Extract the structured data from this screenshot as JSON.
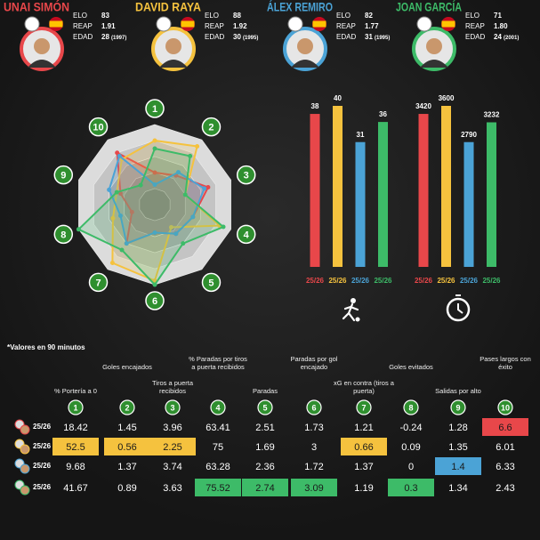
{
  "players": [
    {
      "name": "UNAI SIMÓN",
      "color": "#e8474a",
      "elo": 83,
      "reap": "1.91",
      "age": 28,
      "born": "(1997)"
    },
    {
      "name": "DAVID RAYA",
      "color": "#f5c23e",
      "elo": 88,
      "reap": "1.92",
      "age": 30,
      "born": "(1995)"
    },
    {
      "name": "ÁLEX REMIRO",
      "color": "#4ba3d6",
      "elo": 82,
      "reap": "1.77",
      "age": 31,
      "born": "(1995)"
    },
    {
      "name": "JOAN GARCÍA",
      "color": "#3dbb68",
      "elo": 71,
      "reap": "1.80",
      "age": 24,
      "born": "(2001)"
    }
  ],
  "stat_labels": [
    "ELO",
    "REAP",
    "EDAD"
  ],
  "chart_data": [
    {
      "type": "radar",
      "categories": [
        1,
        2,
        3,
        4,
        5,
        6,
        7,
        8,
        9,
        10
      ],
      "rlim": [
        0,
        100
      ],
      "series": [
        {
          "color": "#e8474a",
          "values": [
            40,
            45,
            70,
            50,
            45,
            35,
            60,
            30,
            45,
            80
          ]
        },
        {
          "color": "#f5c23e",
          "values": [
            80,
            90,
            40,
            85,
            35,
            95,
            90,
            55,
            50,
            70
          ]
        },
        {
          "color": "#4ba3d6",
          "values": [
            25,
            50,
            65,
            50,
            45,
            35,
            60,
            45,
            60,
            75
          ]
        },
        {
          "color": "#3dbb68",
          "values": [
            70,
            75,
            40,
            90,
            60,
            100,
            70,
            100,
            50,
            30
          ]
        }
      ]
    },
    {
      "type": "bar",
      "categories": [
        "25/26",
        "25/26",
        "25/26",
        "25/26"
      ],
      "values": [
        38,
        40,
        31,
        36
      ],
      "colors": [
        "#e8474a",
        "#f5c23e",
        "#4ba3d6",
        "#3dbb68"
      ],
      "ylim": [
        0,
        40
      ]
    },
    {
      "type": "bar",
      "categories": [
        "25/26",
        "25/26",
        "25/26",
        "25/26"
      ],
      "values": [
        3420,
        3600,
        2790,
        3232
      ],
      "colors": [
        "#e8474a",
        "#f5c23e",
        "#4ba3d6",
        "#3dbb68"
      ],
      "ylim": [
        0,
        3600
      ]
    }
  ],
  "table": {
    "note": "*Valores en 90 minutos",
    "columns": [
      {
        "num": 1,
        "label": "% Portería a 0"
      },
      {
        "num": 2,
        "label": "Goles encajados"
      },
      {
        "num": 3,
        "label": "Tiros a puerta recibidos"
      },
      {
        "num": 4,
        "label": "% Paradas por tiros a puerta recibidos"
      },
      {
        "num": 5,
        "label": "Paradas"
      },
      {
        "num": 6,
        "label": "Paradas por gol encajado"
      },
      {
        "num": 7,
        "label": "xG en contra (tiros a puerta)"
      },
      {
        "num": 8,
        "label": "Goles evitados"
      },
      {
        "num": 9,
        "label": "Salidas por alto"
      },
      {
        "num": 10,
        "label": "Pases largos con éxito"
      }
    ],
    "rows": [
      {
        "season": "25/26",
        "values": [
          18.42,
          1.45,
          3.96,
          63.41,
          2.51,
          1.73,
          1.21,
          -0.24,
          1.28,
          6.6
        ],
        "highlight": [
          9
        ]
      },
      {
        "season": "25/26",
        "values": [
          52.5,
          0.56,
          2.25,
          75,
          1.69,
          3,
          0.66,
          0.09,
          1.35,
          6.01
        ],
        "highlight": [
          0,
          1,
          2,
          6
        ]
      },
      {
        "season": "25/26",
        "values": [
          9.68,
          1.37,
          3.74,
          63.28,
          2.36,
          1.72,
          1.37,
          0,
          1.4,
          6.33
        ],
        "highlight": [
          8
        ]
      },
      {
        "season": "25/26",
        "values": [
          41.67,
          0.89,
          3.63,
          75.52,
          2.74,
          3.09,
          1.19,
          0.3,
          1.34,
          2.43
        ],
        "highlight": [
          3,
          4,
          5,
          7
        ]
      }
    ]
  }
}
